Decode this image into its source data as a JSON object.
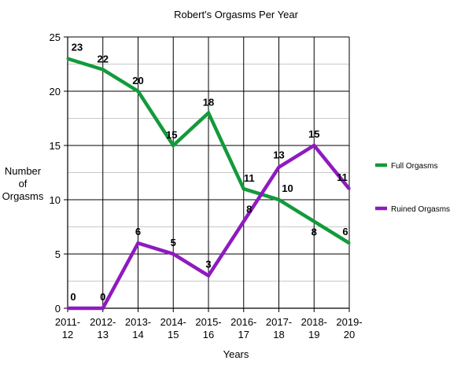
{
  "chart_data": {
    "type": "line",
    "title": "Robert's Orgasms Per Year",
    "xlabel": "Years",
    "ylabel_lines": [
      "Number",
      "of",
      "Orgasms"
    ],
    "categories": [
      [
        "2011-",
        "12"
      ],
      [
        "2012-",
        "13"
      ],
      [
        "2013-",
        "14"
      ],
      [
        "2014-",
        "15"
      ],
      [
        "2015-",
        "16"
      ],
      [
        "2016-",
        "17"
      ],
      [
        "2017-",
        "18"
      ],
      [
        "2018-",
        "19"
      ],
      [
        "2019-",
        "20"
      ]
    ],
    "ylim": [
      0,
      25
    ],
    "yticks": [
      0,
      5,
      10,
      15,
      20,
      25
    ],
    "grid": true,
    "legend_position": "right",
    "series": [
      {
        "name": "Full Orgasms",
        "color": "#139a3b",
        "values": [
          23,
          22,
          20,
          15,
          18,
          11,
          10,
          8,
          6
        ]
      },
      {
        "name": "Ruined Orgasms",
        "color": "#8e1ac1",
        "values": [
          0,
          0,
          6,
          5,
          3,
          8,
          13,
          15,
          11
        ]
      }
    ]
  }
}
